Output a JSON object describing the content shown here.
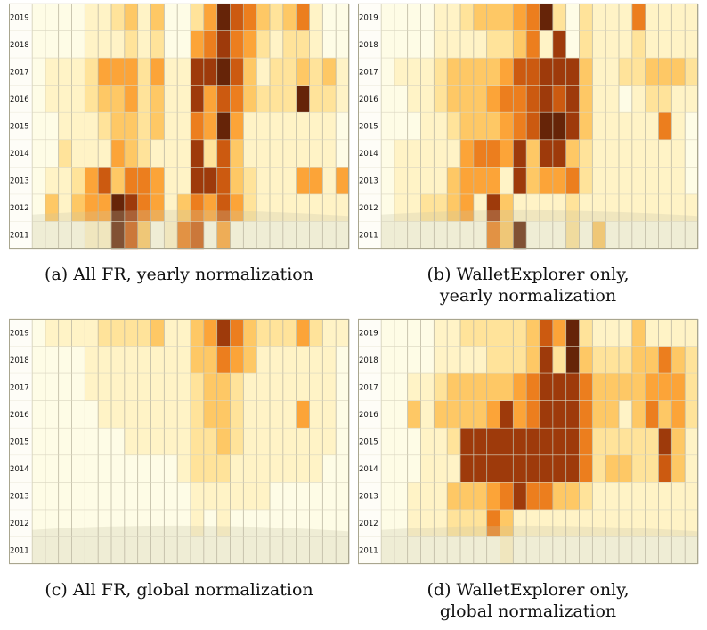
{
  "chart_data": [
    {
      "type": "heatmap",
      "id": "a",
      "caption": "(a) All FR, yearly normalization",
      "rows": [
        "2019",
        "2018",
        "2017",
        "2016",
        "2015",
        "2014",
        "2013",
        "2012",
        "2011"
      ],
      "columns": 24,
      "colorscale": [
        "#fefce6",
        "#fff3c6",
        "#ffe39a",
        "#fec865",
        "#fca438",
        "#ec7e1e",
        "#cc5a10",
        "#9e3a0b",
        "#662408"
      ],
      "grid": true,
      "matrix": [
        [
          0,
          0,
          0,
          0,
          1,
          1,
          2,
          3,
          1,
          3,
          0,
          0,
          2,
          4,
          8,
          6,
          5,
          3,
          2,
          3,
          5,
          1,
          0,
          0
        ],
        [
          0,
          0,
          0,
          0,
          1,
          1,
          1,
          2,
          1,
          2,
          0,
          0,
          4,
          5,
          7,
          5,
          4,
          2,
          1,
          2,
          2,
          1,
          0,
          0
        ],
        [
          0,
          1,
          1,
          1,
          2,
          4,
          4,
          4,
          2,
          4,
          1,
          1,
          7,
          7,
          8,
          6,
          3,
          1,
          2,
          2,
          3,
          2,
          3,
          1
        ],
        [
          0,
          1,
          1,
          1,
          2,
          3,
          3,
          4,
          2,
          3,
          1,
          1,
          7,
          4,
          6,
          5,
          3,
          2,
          2,
          2,
          8,
          2,
          2,
          1
        ],
        [
          0,
          0,
          1,
          1,
          1,
          2,
          3,
          3,
          2,
          3,
          1,
          1,
          5,
          4,
          8,
          4,
          1,
          1,
          1,
          1,
          1,
          1,
          1,
          0
        ],
        [
          0,
          0,
          2,
          1,
          1,
          1,
          4,
          3,
          2,
          1,
          1,
          1,
          7,
          2,
          6,
          3,
          1,
          1,
          1,
          1,
          1,
          1,
          1,
          0
        ],
        [
          0,
          1,
          1,
          2,
          4,
          6,
          3,
          5,
          5,
          4,
          1,
          1,
          7,
          7,
          6,
          3,
          2,
          1,
          1,
          1,
          4,
          4,
          1,
          4
        ],
        [
          0,
          3,
          1,
          3,
          4,
          4,
          8,
          7,
          5,
          4,
          1,
          3,
          5,
          4,
          6,
          4,
          2,
          1,
          1,
          1,
          1,
          1,
          1,
          1
        ],
        [
          0,
          0,
          0,
          0,
          1,
          1,
          8,
          6,
          3,
          0,
          1,
          5,
          6,
          0,
          4,
          0,
          0,
          0,
          0,
          0,
          0,
          0,
          0,
          0
        ]
      ]
    },
    {
      "type": "heatmap",
      "id": "b",
      "caption_lines": [
        "(b) WalletExplorer only,",
        "yearly normalization"
      ],
      "rows": [
        "2019",
        "2018",
        "2017",
        "2016",
        "2015",
        "2014",
        "2013",
        "2012",
        "2011"
      ],
      "columns": 24,
      "colorscale": [
        "#fefce6",
        "#fff3c6",
        "#ffe39a",
        "#fec865",
        "#fca438",
        "#ec7e1e",
        "#cc5a10",
        "#9e3a0b",
        "#662408"
      ],
      "grid": true,
      "matrix": [
        [
          0,
          0,
          0,
          0,
          1,
          1,
          2,
          3,
          3,
          3,
          4,
          5,
          8,
          2,
          0,
          2,
          1,
          1,
          1,
          5,
          1,
          1,
          1,
          1
        ],
        [
          0,
          0,
          0,
          0,
          1,
          1,
          1,
          1,
          2,
          2,
          3,
          5,
          1,
          7,
          0,
          2,
          1,
          1,
          1,
          2,
          1,
          1,
          1,
          1
        ],
        [
          0,
          1,
          1,
          1,
          2,
          3,
          3,
          3,
          3,
          4,
          6,
          6,
          7,
          7,
          7,
          3,
          1,
          1,
          2,
          2,
          3,
          3,
          3,
          2
        ],
        [
          0,
          0,
          1,
          1,
          2,
          3,
          3,
          3,
          4,
          5,
          5,
          6,
          7,
          6,
          7,
          3,
          1,
          1,
          0,
          1,
          2,
          2,
          1,
          1
        ],
        [
          0,
          0,
          0,
          1,
          1,
          2,
          3,
          3,
          3,
          4,
          5,
          6,
          8,
          8,
          7,
          3,
          1,
          1,
          1,
          1,
          1,
          5,
          1,
          0
        ],
        [
          0,
          1,
          1,
          1,
          1,
          1,
          4,
          5,
          5,
          4,
          7,
          3,
          7,
          7,
          3,
          2,
          1,
          1,
          1,
          1,
          1,
          1,
          1,
          0
        ],
        [
          0,
          1,
          1,
          1,
          1,
          3,
          4,
          4,
          4,
          1,
          7,
          3,
          4,
          4,
          5,
          2,
          1,
          1,
          1,
          1,
          1,
          1,
          1,
          0
        ],
        [
          0,
          1,
          1,
          2,
          2,
          3,
          4,
          1,
          7,
          3,
          1,
          1,
          1,
          1,
          2,
          1,
          1,
          1,
          1,
          1,
          1,
          1,
          1,
          1
        ],
        [
          0,
          0,
          0,
          0,
          0,
          0,
          0,
          0,
          5,
          3,
          8,
          0,
          0,
          0,
          2,
          0,
          3,
          0,
          0,
          0,
          0,
          0,
          0,
          0
        ]
      ]
    },
    {
      "type": "heatmap",
      "id": "c",
      "caption": "(c) All FR, global normalization",
      "rows": [
        "2019",
        "2018",
        "2017",
        "2016",
        "2015",
        "2014",
        "2013",
        "2012",
        "2011"
      ],
      "columns": 24,
      "colorscale": [
        "#fefce6",
        "#fff3c6",
        "#ffe39a",
        "#fec865",
        "#fca438",
        "#ec7e1e",
        "#cc5a10",
        "#9e3a0b",
        "#662408"
      ],
      "grid": true,
      "matrix": [
        [
          0,
          1,
          1,
          1,
          1,
          2,
          2,
          2,
          2,
          3,
          1,
          1,
          3,
          4,
          7,
          5,
          3,
          2,
          2,
          2,
          4,
          2,
          1,
          1
        ],
        [
          0,
          0,
          0,
          0,
          1,
          1,
          1,
          1,
          1,
          1,
          1,
          1,
          3,
          3,
          5,
          4,
          3,
          1,
          1,
          1,
          1,
          1,
          1,
          0
        ],
        [
          0,
          0,
          0,
          0,
          1,
          1,
          1,
          1,
          1,
          1,
          1,
          1,
          2,
          3,
          3,
          2,
          1,
          1,
          1,
          1,
          1,
          1,
          1,
          0
        ],
        [
          0,
          0,
          0,
          0,
          0,
          1,
          1,
          1,
          1,
          1,
          1,
          1,
          2,
          3,
          3,
          2,
          1,
          1,
          1,
          1,
          4,
          1,
          1,
          0
        ],
        [
          0,
          0,
          0,
          0,
          0,
          0,
          0,
          1,
          1,
          1,
          1,
          1,
          2,
          2,
          3,
          2,
          1,
          1,
          1,
          1,
          1,
          1,
          1,
          0
        ],
        [
          0,
          0,
          0,
          0,
          0,
          0,
          0,
          0,
          0,
          0,
          0,
          1,
          2,
          2,
          2,
          1,
          1,
          1,
          1,
          1,
          1,
          1,
          0,
          0
        ],
        [
          0,
          0,
          0,
          0,
          0,
          0,
          0,
          0,
          0,
          0,
          0,
          0,
          1,
          1,
          1,
          1,
          1,
          1,
          0,
          0,
          0,
          0,
          0,
          0
        ],
        [
          0,
          0,
          0,
          0,
          0,
          0,
          0,
          0,
          0,
          0,
          0,
          0,
          1,
          0,
          1,
          0,
          0,
          0,
          0,
          0,
          0,
          0,
          0,
          0
        ],
        [
          0,
          0,
          0,
          0,
          0,
          0,
          0,
          0,
          0,
          0,
          0,
          0,
          0,
          0,
          0,
          0,
          0,
          0,
          0,
          0,
          0,
          0,
          0,
          0
        ]
      ]
    },
    {
      "type": "heatmap",
      "id": "d",
      "caption_lines": [
        "(d) WalletExplorer only,",
        "global normalization"
      ],
      "rows": [
        "2019",
        "2018",
        "2017",
        "2016",
        "2015",
        "2014",
        "2013",
        "2012",
        "2011"
      ],
      "columns": 24,
      "colorscale": [
        "#fefce6",
        "#fff3c6",
        "#ffe39a",
        "#fec865",
        "#fca438",
        "#ec7e1e",
        "#cc5a10",
        "#9e3a0b",
        "#662408"
      ],
      "grid": true,
      "matrix": [
        [
          0,
          0,
          0,
          0,
          1,
          1,
          2,
          2,
          2,
          2,
          2,
          3,
          6,
          4,
          8,
          2,
          1,
          1,
          1,
          3,
          1,
          1,
          1,
          1
        ],
        [
          0,
          0,
          0,
          0,
          1,
          1,
          1,
          1,
          2,
          2,
          2,
          3,
          7,
          2,
          8,
          3,
          2,
          2,
          2,
          3,
          3,
          5,
          3,
          2
        ],
        [
          0,
          0,
          1,
          1,
          2,
          3,
          3,
          3,
          3,
          3,
          4,
          5,
          7,
          7,
          7,
          5,
          3,
          3,
          3,
          3,
          4,
          4,
          4,
          2
        ],
        [
          0,
          0,
          3,
          1,
          3,
          3,
          3,
          3,
          4,
          7,
          4,
          5,
          7,
          7,
          7,
          5,
          3,
          3,
          1,
          3,
          5,
          3,
          4,
          2
        ],
        [
          0,
          0,
          0,
          1,
          1,
          2,
          7,
          7,
          7,
          7,
          7,
          7,
          7,
          7,
          7,
          5,
          2,
          2,
          2,
          2,
          2,
          7,
          3,
          1
        ],
        [
          0,
          0,
          0,
          1,
          1,
          1,
          7,
          7,
          7,
          7,
          7,
          7,
          7,
          7,
          7,
          5,
          2,
          3,
          3,
          2,
          2,
          6,
          3,
          1
        ],
        [
          0,
          0,
          1,
          1,
          1,
          3,
          3,
          3,
          4,
          5,
          7,
          5,
          5,
          3,
          3,
          2,
          1,
          1,
          1,
          1,
          1,
          1,
          1,
          1
        ],
        [
          0,
          0,
          1,
          1,
          1,
          2,
          2,
          2,
          5,
          3,
          1,
          1,
          1,
          1,
          1,
          1,
          1,
          1,
          1,
          1,
          1,
          1,
          1,
          1
        ],
        [
          0,
          0,
          0,
          0,
          0,
          0,
          0,
          0,
          0,
          1,
          0,
          0,
          0,
          0,
          0,
          0,
          0,
          0,
          0,
          0,
          0,
          0,
          0,
          0
        ]
      ]
    }
  ]
}
